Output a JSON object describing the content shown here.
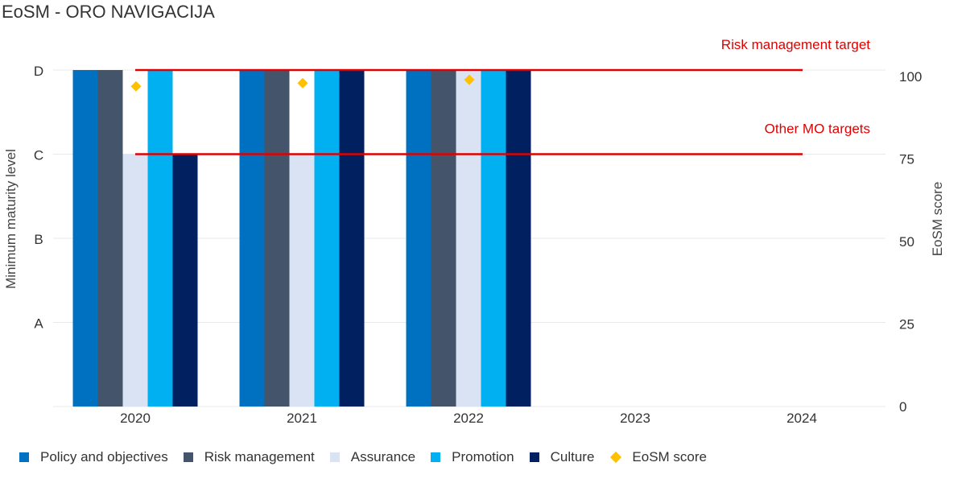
{
  "chart_data": {
    "type": "bar",
    "title": "EoSM - ORO NAVIGACIJA",
    "categories": [
      "2020",
      "2021",
      "2022",
      "2023",
      "2024"
    ],
    "y_left": {
      "label": "Minimum maturity level",
      "ticks": [
        "A",
        "B",
        "C",
        "D"
      ],
      "tick_values": [
        1,
        2,
        3,
        4
      ],
      "range": [
        0,
        4
      ]
    },
    "y_right": {
      "label": "EoSM score",
      "ticks": [
        0,
        25,
        50,
        75,
        100
      ],
      "range": [
        0,
        100
      ]
    },
    "series": [
      {
        "name": "Policy and objectives",
        "color": "#0070C0",
        "values": [
          4,
          4,
          4,
          null,
          null
        ]
      },
      {
        "name": "Risk management",
        "color": "#44546A",
        "values": [
          4,
          4,
          4,
          null,
          null
        ]
      },
      {
        "name": "Assurance",
        "color": "#DAE3F3",
        "values": [
          3,
          3,
          4,
          null,
          null
        ]
      },
      {
        "name": "Promotion",
        "color": "#00B0F0",
        "values": [
          4,
          4,
          4,
          null,
          null
        ]
      },
      {
        "name": "Culture",
        "color": "#002060",
        "values": [
          3,
          4,
          4,
          null,
          null
        ]
      }
    ],
    "eosm_score": {
      "name": "EoSM score",
      "color": "#FFC000",
      "values": [
        97,
        98,
        99,
        null,
        null
      ]
    },
    "target_lines": [
      {
        "label": "Risk management target",
        "level": 4,
        "color": "#E00000"
      },
      {
        "label": "Other MO targets",
        "level": 3,
        "color": "#E00000"
      }
    ],
    "grid": true,
    "legend_position": "bottom"
  }
}
